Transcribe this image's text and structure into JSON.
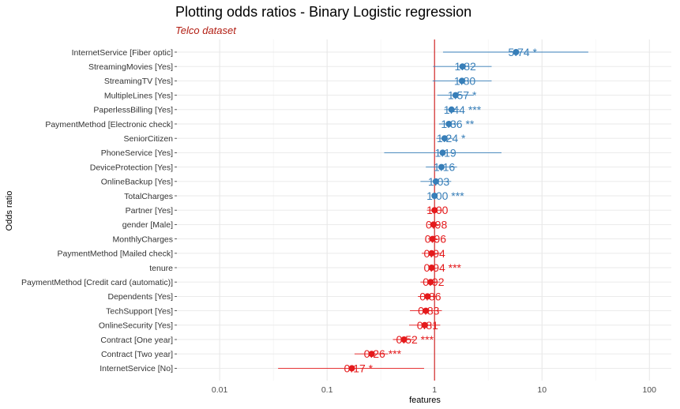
{
  "chart_data": {
    "type": "forest",
    "title": "Plotting odds ratios - Binary Logistic regression",
    "subtitle": "Telco dataset",
    "xlabel": "features",
    "ylabel": "Odds ratio",
    "x_scale": "log",
    "xlim": [
      0.004,
      160
    ],
    "x_ticks": [
      0.01,
      0.1,
      1,
      10,
      100
    ],
    "x_tick_labels": [
      "0.01",
      "0.1",
      "1",
      "10",
      "100"
    ],
    "reference_line": 1,
    "grid": true,
    "colors": {
      "positive": "#377eb8",
      "negative": "#e41a1c",
      "reference": "#cc0000",
      "subtitle": "#b21d12"
    },
    "rows": [
      {
        "term": "InternetService [Fiber optic]",
        "estimate": 5.74,
        "ci": [
          1.2,
          27
        ],
        "label": "5.74 *",
        "direction": "positive"
      },
      {
        "term": "StreamingMovies [Yes]",
        "estimate": 1.82,
        "ci": [
          0.97,
          3.4
        ],
        "label": "1.82",
        "direction": "positive"
      },
      {
        "term": "StreamingTV [Yes]",
        "estimate": 1.8,
        "ci": [
          0.96,
          3.4
        ],
        "label": "1.80",
        "direction": "positive"
      },
      {
        "term": "MultipleLines [Yes]",
        "estimate": 1.57,
        "ci": [
          1.06,
          2.3
        ],
        "label": "1.57 *",
        "direction": "positive"
      },
      {
        "term": "PaperlessBilling [Yes]",
        "estimate": 1.44,
        "ci": [
          1.23,
          1.7
        ],
        "label": "1.44 ***",
        "direction": "positive"
      },
      {
        "term": "PaymentMethod [Electronic check]",
        "estimate": 1.36,
        "ci": [
          1.1,
          1.68
        ],
        "label": "1.36 **",
        "direction": "positive"
      },
      {
        "term": "SeniorCitizen",
        "estimate": 1.24,
        "ci": [
          1.04,
          1.48
        ],
        "label": "1.24 *",
        "direction": "positive"
      },
      {
        "term": "PhoneService [Yes]",
        "estimate": 1.19,
        "ci": [
          0.34,
          4.2
        ],
        "label": "1.19",
        "direction": "positive"
      },
      {
        "term": "DeviceProtection [Yes]",
        "estimate": 1.16,
        "ci": [
          0.83,
          1.62
        ],
        "label": "1.16",
        "direction": "positive"
      },
      {
        "term": "OnlineBackup [Yes]",
        "estimate": 1.03,
        "ci": [
          0.74,
          1.43
        ],
        "label": "1.03",
        "direction": "positive"
      },
      {
        "term": "TotalCharges",
        "estimate": 1.0,
        "ci": [
          1.0,
          1.0
        ],
        "label": "1.00 ***",
        "direction": "positive"
      },
      {
        "term": "Partner [Yes]",
        "estimate": 1.0,
        "ci": [
          0.85,
          1.18
        ],
        "label": "1.00",
        "direction": "negative"
      },
      {
        "term": "gender [Male]",
        "estimate": 0.98,
        "ci": [
          0.87,
          1.1
        ],
        "label": "0.98",
        "direction": "negative"
      },
      {
        "term": "MonthlyCharges",
        "estimate": 0.96,
        "ci": [
          0.87,
          1.06
        ],
        "label": "0.96",
        "direction": "negative"
      },
      {
        "term": "PaymentMethod [Mailed check]",
        "estimate": 0.94,
        "ci": [
          0.76,
          1.15
        ],
        "label": "0.94",
        "direction": "negative"
      },
      {
        "term": "tenure",
        "estimate": 0.94,
        "ci": [
          0.92,
          0.96
        ],
        "label": "0.94 ***",
        "direction": "negative"
      },
      {
        "term": "PaymentMethod [Credit card (automatic)]",
        "estimate": 0.92,
        "ci": [
          0.74,
          1.13
        ],
        "label": "0.92",
        "direction": "negative"
      },
      {
        "term": "Dependents [Yes]",
        "estimate": 0.86,
        "ci": [
          0.7,
          1.05
        ],
        "label": "0.86",
        "direction": "negative"
      },
      {
        "term": "TechSupport [Yes]",
        "estimate": 0.83,
        "ci": [
          0.59,
          1.17
        ],
        "label": "0.83",
        "direction": "negative"
      },
      {
        "term": "OnlineSecurity [Yes]",
        "estimate": 0.81,
        "ci": [
          0.58,
          1.13
        ],
        "label": "0.81",
        "direction": "negative"
      },
      {
        "term": "Contract [One year]",
        "estimate": 0.52,
        "ci": [
          0.41,
          0.65
        ],
        "label": "0.52 ***",
        "direction": "negative"
      },
      {
        "term": "Contract [Two year]",
        "estimate": 0.26,
        "ci": [
          0.18,
          0.37
        ],
        "label": "0.26 ***",
        "direction": "negative"
      },
      {
        "term": "InternetService [No]",
        "estimate": 0.17,
        "ci": [
          0.035,
          0.8
        ],
        "label": "0.17 *",
        "direction": "negative"
      }
    ]
  }
}
